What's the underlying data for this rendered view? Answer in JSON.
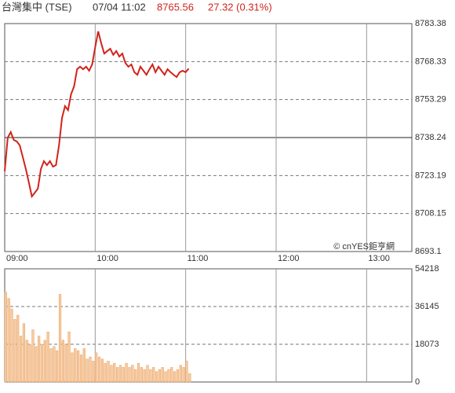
{
  "header": {
    "name": "台灣集中 (TSE)",
    "time": "07/04 11:02",
    "price": "8765.56",
    "change": "27.32 (0.31%)"
  },
  "chart_data": [
    {
      "type": "line",
      "annotation": "© cnYES鉅亨網",
      "color": "#d0241c",
      "reference_line": 8738.24,
      "x": [
        0,
        2,
        4,
        6,
        8,
        10,
        12,
        14,
        16,
        18,
        20,
        22,
        24,
        26,
        28,
        30,
        32,
        34,
        36,
        38,
        40,
        42,
        44,
        46,
        48,
        50,
        52,
        54,
        56,
        58,
        60,
        62,
        64,
        66,
        68,
        70,
        72,
        74,
        76,
        78,
        80,
        82,
        84,
        86,
        88,
        90,
        92,
        94,
        96,
        98,
        100,
        102,
        104,
        106,
        108,
        110,
        112,
        114,
        116,
        118,
        120,
        122
      ],
      "values": [
        8724.9,
        8738.2,
        8740.4,
        8737.3,
        8736.7,
        8735.1,
        8730.5,
        8725.8,
        8720.5,
        8714.9,
        8716.4,
        8718.0,
        8725.8,
        8728.9,
        8727.3,
        8728.9,
        8726.7,
        8727.3,
        8735.1,
        8746.0,
        8750.7,
        8749.1,
        8755.4,
        8758.5,
        8765.3,
        8766.3,
        8765.3,
        8766.3,
        8764.7,
        8767.2,
        8774.0,
        8780.3,
        8775.6,
        8771.5,
        8772.5,
        8773.4,
        8771.0,
        8772.5,
        8770.3,
        8771.5,
        8767.8,
        8766.3,
        8767.2,
        8764.1,
        8763.1,
        8766.3,
        8764.7,
        8763.1,
        8765.3,
        8767.2,
        8764.1,
        8766.3,
        8764.7,
        8763.1,
        8765.3,
        8764.1,
        8763.1,
        8762.2,
        8764.1,
        8764.7,
        8764.1,
        8765.56
      ],
      "xlim": [
        0,
        270
      ],
      "xticks": [
        {
          "value": 0,
          "label": "09:00"
        },
        {
          "value": 60,
          "label": "10:00"
        },
        {
          "value": 120,
          "label": "11:00"
        },
        {
          "value": 180,
          "label": "12:00"
        },
        {
          "value": 240,
          "label": "13:00"
        }
      ],
      "ylim": [
        8693.1,
        8783.38
      ],
      "yticks": [
        8693.1,
        8708.15,
        8723.19,
        8738.24,
        8753.29,
        8768.33,
        8783.38
      ],
      "grid": true
    },
    {
      "type": "bar",
      "color": "#f7caa0",
      "x": [
        0,
        2,
        4,
        6,
        8,
        10,
        12,
        14,
        16,
        18,
        20,
        22,
        24,
        26,
        28,
        30,
        32,
        34,
        36,
        38,
        40,
        42,
        44,
        46,
        48,
        50,
        52,
        54,
        56,
        58,
        60,
        62,
        64,
        66,
        68,
        70,
        72,
        74,
        76,
        78,
        80,
        82,
        84,
        86,
        88,
        90,
        92,
        94,
        96,
        98,
        100,
        102,
        104,
        106,
        108,
        110,
        112,
        114,
        116,
        118,
        120,
        122
      ],
      "values": [
        43000,
        40000,
        35000,
        30000,
        32000,
        22000,
        28000,
        20000,
        18000,
        25000,
        17000,
        22000,
        18000,
        20000,
        24000,
        16000,
        17000,
        15000,
        42000,
        20000,
        18000,
        24000,
        14000,
        16000,
        15000,
        13000,
        16000,
        11000,
        12000,
        10000,
        14000,
        12000,
        11000,
        9000,
        10000,
        8000,
        9000,
        7000,
        8000,
        7000,
        9000,
        7000,
        8000,
        6000,
        9000,
        7000,
        6000,
        8000,
        6000,
        7000,
        5000,
        6000,
        7000,
        5000,
        6000,
        7000,
        5000,
        6000,
        8000,
        7000,
        10000,
        4000
      ],
      "xlim": [
        0,
        270
      ],
      "ylim": [
        0,
        54218
      ],
      "yticks": [
        0,
        18073,
        36145,
        54218
      ],
      "grid": true
    }
  ]
}
